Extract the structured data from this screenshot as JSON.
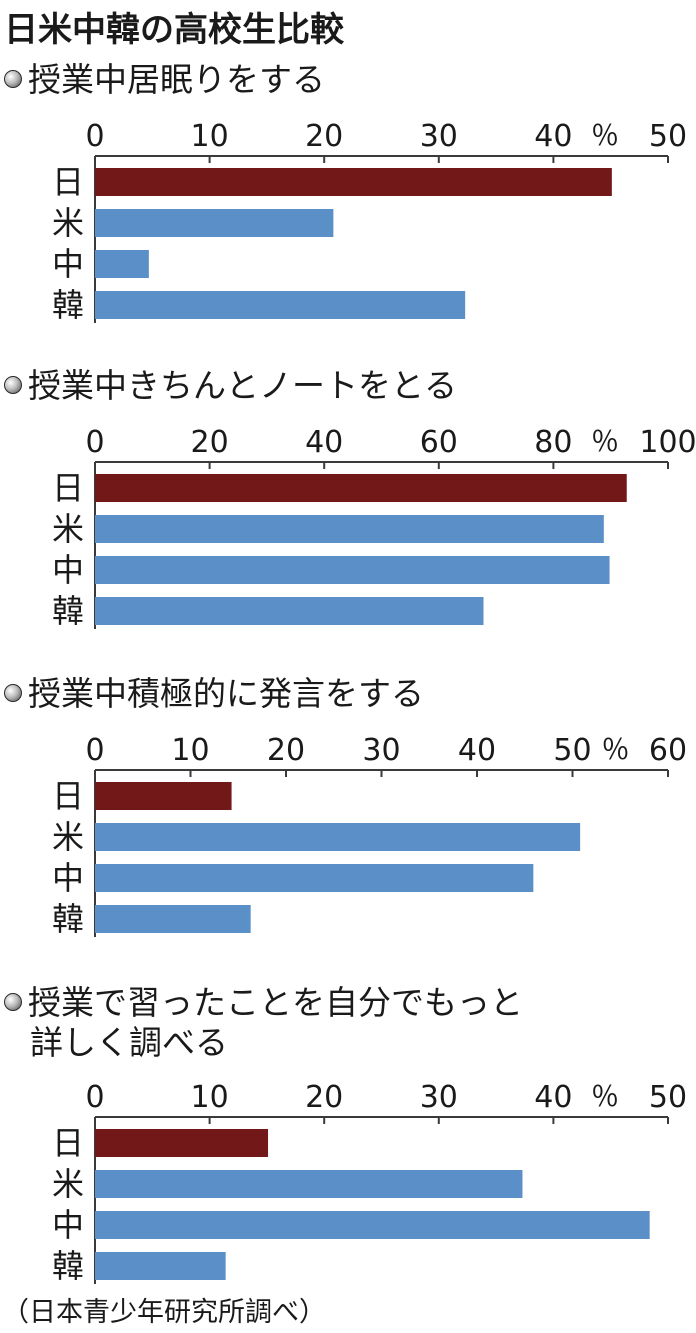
{
  "title": "日米中韓の高校生比較",
  "source": "（日本青少年研究所調べ）",
  "colors": {
    "japan": "#731819",
    "others": "#5b8fc8"
  },
  "chart_data": [
    {
      "type": "bar",
      "orientation": "horizontal",
      "title_lines": [
        "授業中居眠りをする"
      ],
      "categories": [
        "日",
        "米",
        "中",
        "韓"
      ],
      "values": [
        45.1,
        20.8,
        4.7,
        32.3
      ],
      "xlim": [
        0,
        50
      ],
      "ticks": [
        0,
        10,
        20,
        30,
        40,
        50
      ],
      "unit": "％"
    },
    {
      "type": "bar",
      "orientation": "horizontal",
      "title_lines": [
        "授業中きちんとノートをとる"
      ],
      "categories": [
        "日",
        "米",
        "中",
        "韓"
      ],
      "values": [
        92.8,
        88.8,
        89.8,
        67.8
      ],
      "xlim": [
        0,
        100
      ],
      "ticks": [
        0,
        20,
        40,
        60,
        80,
        100
      ],
      "unit": "％"
    },
    {
      "type": "bar",
      "orientation": "horizontal",
      "title_lines": [
        "授業中積極的に発言をする"
      ],
      "categories": [
        "日",
        "米",
        "中",
        "韓"
      ],
      "values": [
        14.3,
        50.8,
        45.9,
        16.3
      ],
      "xlim": [
        0,
        60
      ],
      "ticks": [
        0,
        10,
        20,
        30,
        40,
        50,
        60
      ],
      "unit": "％"
    },
    {
      "type": "bar",
      "orientation": "horizontal",
      "title_lines": [
        "授業で習ったことを自分でもっと",
        "詳しく調べる"
      ],
      "categories": [
        "日",
        "米",
        "中",
        "韓"
      ],
      "values": [
        15.1,
        37.3,
        48.4,
        11.4
      ],
      "xlim": [
        0,
        50
      ],
      "ticks": [
        0,
        10,
        20,
        30,
        40,
        50
      ],
      "unit": "％"
    }
  ]
}
